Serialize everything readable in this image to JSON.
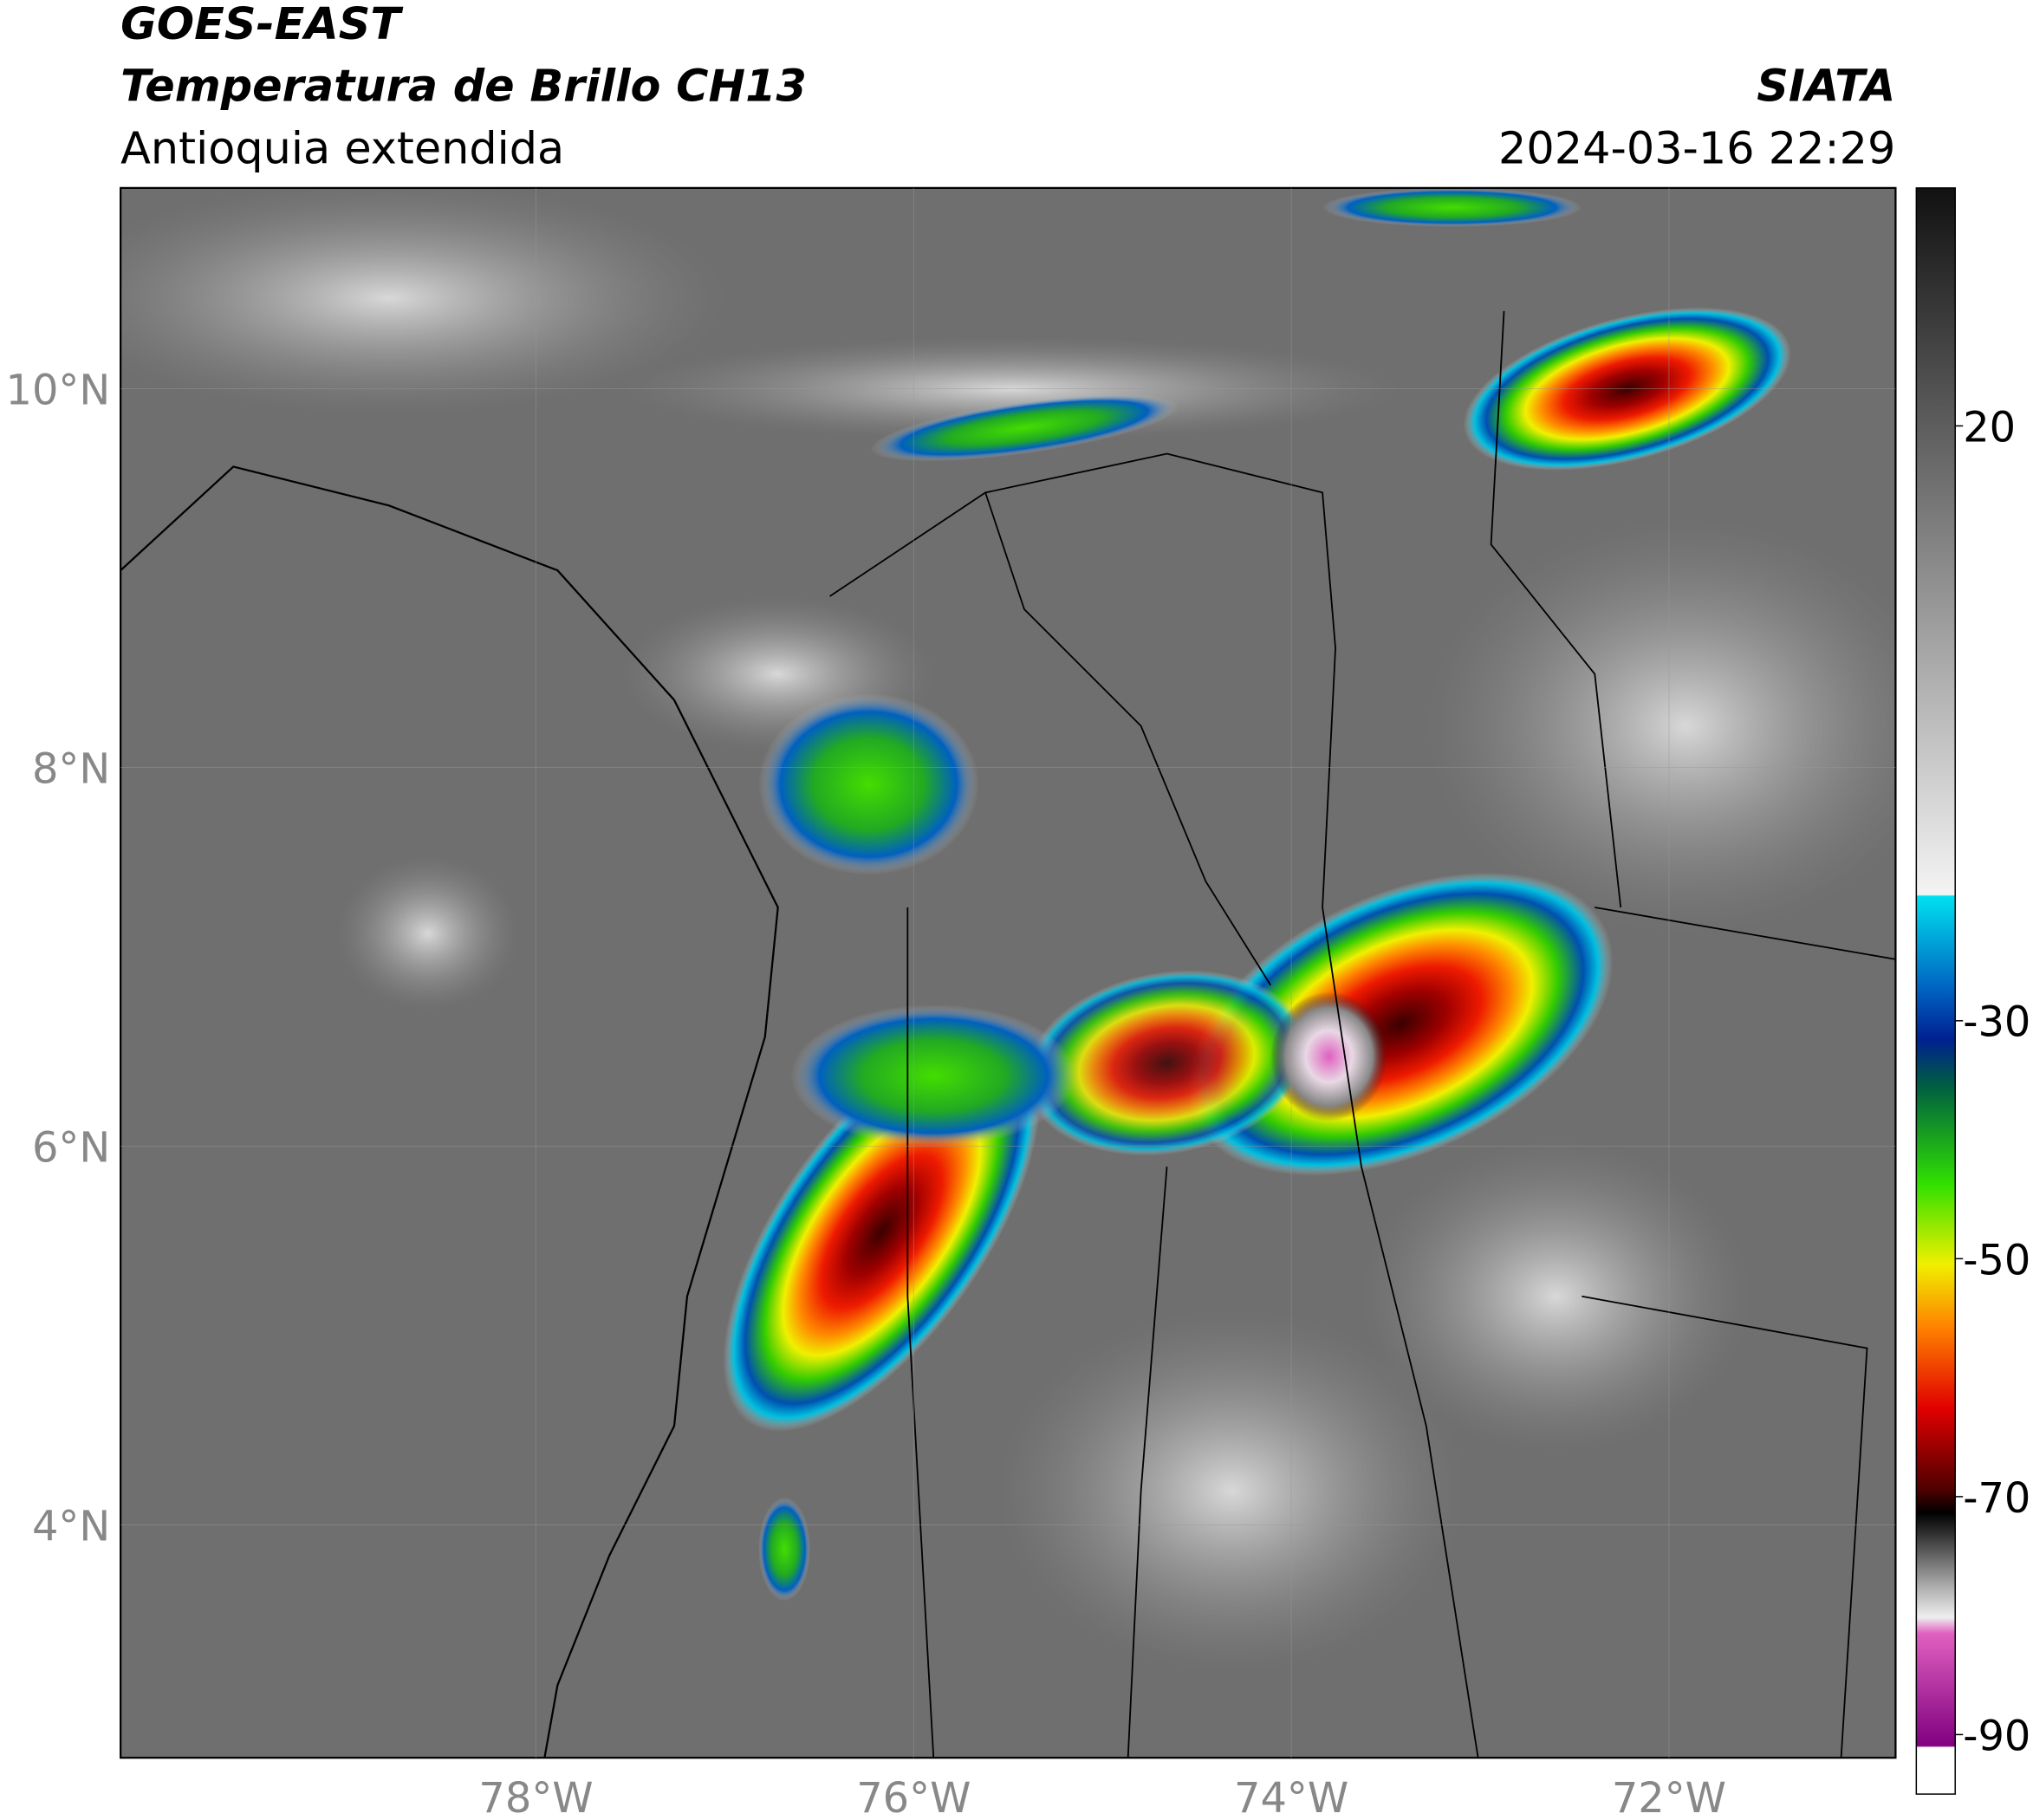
{
  "header": {
    "title": "GOES-EAST",
    "subtitle": "Temperatura de Brillo CH13",
    "region": "Antioquia extendida",
    "agency": "SIATA",
    "timestamp": "2024-03-16 22:29"
  },
  "map": {
    "xlim": [
      -80.2,
      -70.8
    ],
    "ylim": [
      2.77,
      11.06
    ],
    "xticks": [
      {
        "value": -78,
        "label": "78°W"
      },
      {
        "value": -76,
        "label": "76°W"
      },
      {
        "value": -74,
        "label": "74°W"
      },
      {
        "value": -72,
        "label": "72°W"
      }
    ],
    "yticks": [
      {
        "value": 10,
        "label": "10°N"
      },
      {
        "value": 8,
        "label": "8°N"
      },
      {
        "value": 6,
        "label": "6°N"
      },
      {
        "value": 4,
        "label": "4°N"
      }
    ]
  },
  "colorbar": {
    "lim": [
      -95,
      40
    ],
    "ticks": [
      20,
      -30,
      -50,
      -70,
      -90
    ]
  }
}
